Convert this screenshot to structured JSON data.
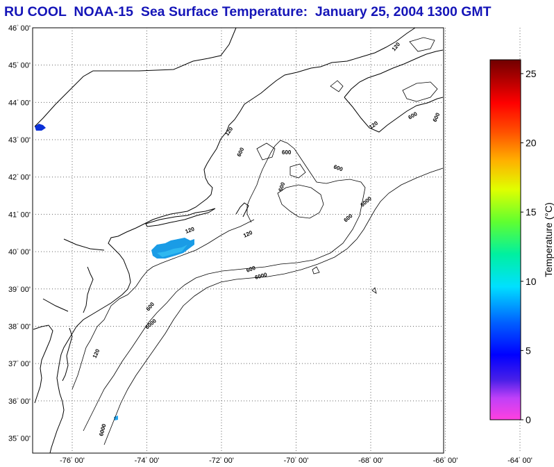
{
  "title": "RU COOL  NOAA-15  Sea Surface Temperature:  January 25, 2004 1300 GMT",
  "map": {
    "lat_ticks": [
      {
        "deg": "46",
        "min": "00'"
      },
      {
        "deg": "45",
        "min": "00'"
      },
      {
        "deg": "44",
        "min": "00'"
      },
      {
        "deg": "43",
        "min": "00'"
      },
      {
        "deg": "42",
        "min": "00'"
      },
      {
        "deg": "41",
        "min": "00'"
      },
      {
        "deg": "40",
        "min": "00'"
      },
      {
        "deg": "39",
        "min": "00'"
      },
      {
        "deg": "38",
        "min": "00'"
      },
      {
        "deg": "37",
        "min": "00'"
      },
      {
        "deg": "36",
        "min": "00'"
      },
      {
        "deg": "35",
        "min": "00'"
      }
    ],
    "lon_ticks": [
      {
        "deg": "-76",
        "min": "00'"
      },
      {
        "deg": "-74",
        "min": "00'"
      },
      {
        "deg": "-72",
        "min": "00'"
      },
      {
        "deg": "-70",
        "min": "00'"
      },
      {
        "deg": "-68",
        "min": "00'"
      },
      {
        "deg": "-66",
        "min": "00'"
      },
      {
        "deg": "-64",
        "min": "00'"
      }
    ],
    "contour_labels": [
      "120",
      "600",
      "6000"
    ],
    "land_color": "#ffffff",
    "coast_color": "#000000"
  },
  "colorbar": {
    "label": "Temperature (°C)",
    "ticks": [
      "25",
      "20",
      "15",
      "10",
      "5",
      "0"
    ],
    "range": [
      0,
      26
    ]
  }
}
